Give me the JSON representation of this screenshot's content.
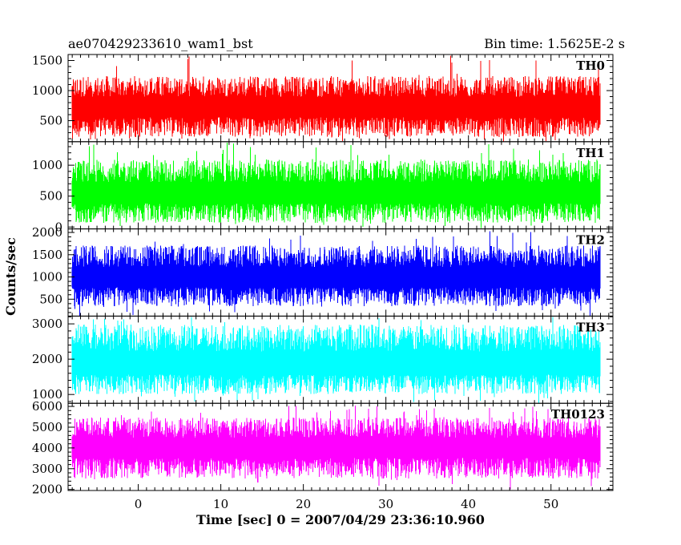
{
  "header": {
    "title": "ae070429233610_wam1_bst",
    "bin_time": "Bin time: 1.5625E-2 s"
  },
  "chart_data": {
    "type": "line",
    "subtype": "stacked light curves",
    "xlabel": "Time [sec] 0 = 2007/04/29 23:36:10.960",
    "ylabel": "Counts/sec",
    "xlim": [
      -8.5,
      57.5
    ],
    "x_ticks": [
      0,
      10,
      20,
      30,
      40,
      50
    ],
    "x_data_range": [
      -8.0,
      56.0
    ],
    "bin_time": 0.015625,
    "grid": false,
    "panels": [
      {
        "name": "TH0",
        "color": "#ff0000",
        "ylim": [
          150,
          1600
        ],
        "yticks": [
          500,
          1000,
          1500
        ],
        "mean": 700,
        "typical_min": 220,
        "typical_max": 1250,
        "peak_max": 1590
      },
      {
        "name": "TH1",
        "color": "#00ff00",
        "ylim": [
          -30,
          1380
        ],
        "yticks": [
          0,
          500,
          1000
        ],
        "mean": 520,
        "typical_min": 60,
        "typical_max": 1100,
        "peak_max": 1370
      },
      {
        "name": "TH2",
        "color": "#0000ff",
        "ylim": [
          120,
          2080
        ],
        "yticks": [
          500,
          1000,
          1500,
          2000
        ],
        "mean": 950,
        "typical_min": 330,
        "typical_max": 1720,
        "peak_max": 2050
      },
      {
        "name": "TH3",
        "color": "#00ffff",
        "ylim": [
          750,
          3220
        ],
        "yticks": [
          1000,
          2000,
          3000
        ],
        "mean": 1800,
        "typical_min": 1000,
        "typical_max": 3000,
        "peak_max": 3200
      },
      {
        "name": "TH0123",
        "color": "#ff00ff",
        "ylim": [
          1950,
          6150
        ],
        "yticks": [
          2000,
          3000,
          4000,
          5000,
          6000
        ],
        "mean": 3950,
        "typical_min": 2500,
        "typical_max": 5500,
        "peak_max": 6050
      }
    ]
  }
}
